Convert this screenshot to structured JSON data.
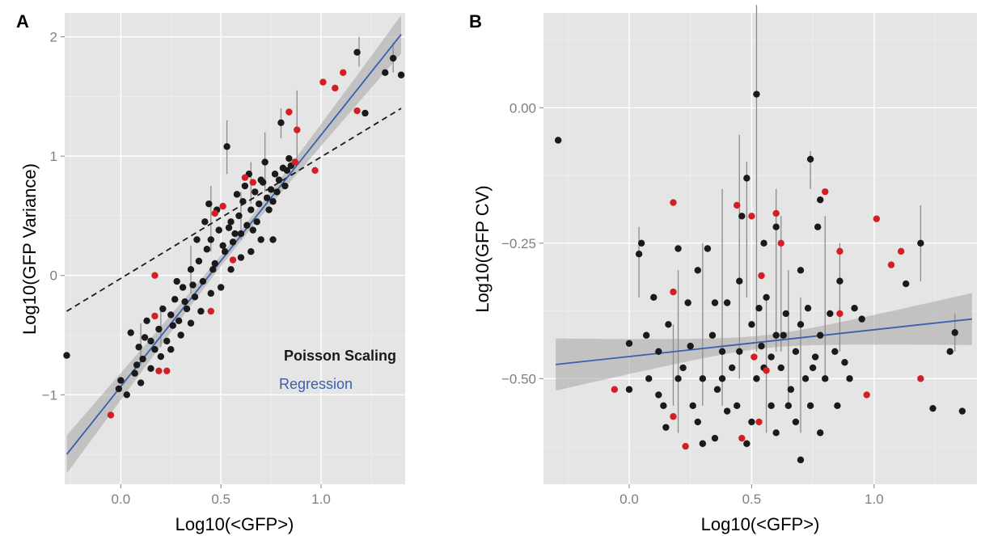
{
  "chart_data": [
    {
      "type": "scatter",
      "panel_letter": "A",
      "xlabel": "Log10(<GFP>)",
      "ylabel": "Log10(GFP Variance)",
      "xlim": [
        -0.28,
        1.42
      ],
      "ylim": [
        -1.75,
        2.2
      ],
      "x_ticks": [
        0.0,
        0.5,
        1.0
      ],
      "x_tick_labels": [
        "0.0",
        "0.5",
        "1.0"
      ],
      "y_ticks": [
        -1,
        0,
        1,
        2
      ],
      "y_tick_labels": [
        "−1",
        "0",
        "1",
        "2"
      ],
      "grid": true,
      "legend_position": "bottom-right",
      "legend": [
        {
          "label": "Poisson Scaling",
          "color": "#1a1a1a",
          "style": "dashed",
          "bold": true
        },
        {
          "label": "Regression",
          "color": "#3a5fb0",
          "style": "solid"
        }
      ],
      "reference_line": {
        "label": "Poisson Scaling",
        "x": [
          -0.27,
          1.4
        ],
        "y": [
          -0.3,
          1.4
        ],
        "color": "#1a1a1a"
      },
      "regression": {
        "label": "Regression",
        "x": [
          -0.27,
          1.4
        ],
        "y": [
          -1.5,
          2.02
        ],
        "band_halfwidth_ends": 0.16,
        "band_halfwidth_center": 0.045,
        "color": "#3a5fb0",
        "band_color": "#a6a6a6"
      },
      "point_colors": {
        "black": "#1a1a1a",
        "red": "#d21f26"
      },
      "points_red": [
        {
          "x": -0.05,
          "y": -1.17
        },
        {
          "x": 0.17,
          "y": 0.0
        },
        {
          "x": 0.17,
          "y": -0.34
        },
        {
          "x": 0.19,
          "y": -0.8
        },
        {
          "x": 0.23,
          "y": -0.8
        },
        {
          "x": 0.45,
          "y": -0.3
        },
        {
          "x": 0.47,
          "y": 0.52
        },
        {
          "x": 0.51,
          "y": 0.58
        },
        {
          "x": 0.56,
          "y": 0.13
        },
        {
          "x": 0.62,
          "y": 0.82
        },
        {
          "x": 0.66,
          "y": 0.78
        },
        {
          "x": 0.84,
          "y": 1.37
        },
        {
          "x": 0.87,
          "y": 0.95
        },
        {
          "x": 0.88,
          "y": 1.22
        },
        {
          "x": 0.97,
          "y": 0.88
        },
        {
          "x": 1.01,
          "y": 1.62
        },
        {
          "x": 1.07,
          "y": 1.57
        },
        {
          "x": 1.11,
          "y": 1.7
        },
        {
          "x": 1.18,
          "y": 1.38
        }
      ],
      "points_black": [
        {
          "x": -0.27,
          "y": -0.67
        },
        {
          "x": -0.01,
          "y": -0.95
        },
        {
          "x": 0.0,
          "y": -0.88
        },
        {
          "x": 0.03,
          "y": -1.0
        },
        {
          "x": 0.05,
          "y": -0.48
        },
        {
          "x": 0.07,
          "y": -0.82
        },
        {
          "x": 0.09,
          "y": -0.6
        },
        {
          "x": 0.11,
          "y": -0.7
        },
        {
          "x": 0.13,
          "y": -0.38
        },
        {
          "x": 0.15,
          "y": -0.55
        },
        {
          "x": 0.17,
          "y": -0.62
        },
        {
          "x": 0.19,
          "y": -0.45
        },
        {
          "x": 0.21,
          "y": -0.28
        },
        {
          "x": 0.23,
          "y": -0.55
        },
        {
          "x": 0.25,
          "y": -0.33
        },
        {
          "x": 0.27,
          "y": -0.2
        },
        {
          "x": 0.29,
          "y": -0.38
        },
        {
          "x": 0.31,
          "y": -0.1
        },
        {
          "x": 0.33,
          "y": -0.28
        },
        {
          "x": 0.35,
          "y": 0.05
        },
        {
          "x": 0.37,
          "y": -0.18
        },
        {
          "x": 0.39,
          "y": 0.12
        },
        {
          "x": 0.41,
          "y": -0.05
        },
        {
          "x": 0.43,
          "y": 0.22
        },
        {
          "x": 0.45,
          "y": 0.3
        },
        {
          "x": 0.47,
          "y": 0.1
        },
        {
          "x": 0.49,
          "y": 0.38
        },
        {
          "x": 0.51,
          "y": 0.25
        },
        {
          "x": 0.53,
          "y": 1.08
        },
        {
          "x": 0.55,
          "y": 0.45
        },
        {
          "x": 0.57,
          "y": 0.35
        },
        {
          "x": 0.59,
          "y": 0.5
        },
        {
          "x": 0.61,
          "y": 0.62
        },
        {
          "x": 0.63,
          "y": 0.42
        },
        {
          "x": 0.65,
          "y": 0.55
        },
        {
          "x": 0.67,
          "y": 0.7
        },
        {
          "x": 0.69,
          "y": 0.6
        },
        {
          "x": 0.71,
          "y": 0.78
        },
        {
          "x": 0.73,
          "y": 0.65
        },
        {
          "x": 0.75,
          "y": 0.72
        },
        {
          "x": 0.77,
          "y": 0.85
        },
        {
          "x": 0.79,
          "y": 0.8
        },
        {
          "x": 0.81,
          "y": 0.9
        },
        {
          "x": 0.83,
          "y": 0.88
        },
        {
          "x": 0.8,
          "y": 1.28
        },
        {
          "x": 0.85,
          "y": 0.92
        },
        {
          "x": 0.6,
          "y": 0.15
        },
        {
          "x": 0.5,
          "y": -0.1
        },
        {
          "x": 0.4,
          "y": -0.3
        },
        {
          "x": 0.3,
          "y": -0.5
        },
        {
          "x": 1.18,
          "y": 1.87
        },
        {
          "x": 1.22,
          "y": 1.36
        },
        {
          "x": 1.32,
          "y": 1.7
        },
        {
          "x": 1.36,
          "y": 1.82
        },
        {
          "x": 1.4,
          "y": 1.68
        },
        {
          "x": 0.7,
          "y": 0.3
        },
        {
          "x": 0.65,
          "y": 0.2
        },
        {
          "x": 0.55,
          "y": 0.05
        },
        {
          "x": 0.45,
          "y": -0.15
        },
        {
          "x": 0.35,
          "y": -0.4
        },
        {
          "x": 0.25,
          "y": -0.62
        },
        {
          "x": 0.15,
          "y": -0.78
        },
        {
          "x": 0.1,
          "y": -0.9
        },
        {
          "x": 0.72,
          "y": 0.95
        },
        {
          "x": 0.78,
          "y": 0.7
        },
        {
          "x": 0.84,
          "y": 0.98
        },
        {
          "x": 0.62,
          "y": 0.75
        },
        {
          "x": 0.58,
          "y": 0.68
        },
        {
          "x": 0.42,
          "y": 0.45
        },
        {
          "x": 0.38,
          "y": 0.3
        },
        {
          "x": 0.48,
          "y": 0.55
        },
        {
          "x": 0.52,
          "y": 0.2
        },
        {
          "x": 0.68,
          "y": 0.45
        },
        {
          "x": 0.74,
          "y": 0.55
        },
        {
          "x": 0.76,
          "y": 0.62
        },
        {
          "x": 0.82,
          "y": 0.75
        },
        {
          "x": 0.66,
          "y": 0.38
        },
        {
          "x": 0.56,
          "y": 0.28
        },
        {
          "x": 0.46,
          "y": 0.05
        },
        {
          "x": 0.36,
          "y": -0.08
        },
        {
          "x": 0.26,
          "y": -0.42
        },
        {
          "x": 0.2,
          "y": -0.68
        },
        {
          "x": 0.12,
          "y": -0.52
        },
        {
          "x": 0.08,
          "y": -0.75
        },
        {
          "x": 0.32,
          "y": -0.22
        },
        {
          "x": 0.28,
          "y": -0.05
        },
        {
          "x": 0.44,
          "y": 0.6
        },
        {
          "x": 0.54,
          "y": 0.4
        },
        {
          "x": 0.64,
          "y": 0.85
        },
        {
          "x": 0.7,
          "y": 0.8
        },
        {
          "x": 0.76,
          "y": 0.3
        },
        {
          "x": 0.6,
          "y": 0.35
        }
      ],
      "error_bars": [
        {
          "x": 0.53,
          "y1": 0.85,
          "y2": 1.3
        },
        {
          "x": 0.88,
          "y1": 0.95,
          "y2": 1.55
        },
        {
          "x": 0.72,
          "y1": 0.7,
          "y2": 1.2
        },
        {
          "x": 0.45,
          "y1": 0.2,
          "y2": 0.75
        },
        {
          "x": 0.35,
          "y1": -0.15,
          "y2": 0.25
        },
        {
          "x": 0.2,
          "y1": -0.6,
          "y2": -0.25
        },
        {
          "x": 1.19,
          "y1": 1.75,
          "y2": 2.0
        },
        {
          "x": 1.36,
          "y1": 1.7,
          "y2": 1.95
        },
        {
          "x": 0.6,
          "y1": 0.3,
          "y2": 0.7
        },
        {
          "x": 0.8,
          "y1": 1.15,
          "y2": 1.4
        },
        {
          "x": 0.1,
          "y1": -0.75,
          "y2": -0.4
        },
        {
          "x": 0.65,
          "y1": 0.6,
          "y2": 0.95
        }
      ]
    },
    {
      "type": "scatter",
      "panel_letter": "B",
      "xlabel": "Log10(<GFP>)",
      "ylabel": "Log10(GFP CV)",
      "xlim": [
        -0.35,
        1.42
      ],
      "ylim": [
        -0.695,
        0.175
      ],
      "x_ticks": [
        0.0,
        0.5,
        1.0
      ],
      "x_tick_labels": [
        "0.0",
        "0.5",
        "1.0"
      ],
      "y_ticks": [
        0.0,
        -0.25,
        -0.5
      ],
      "y_tick_labels": [
        "0.00",
        "−0.25",
        "−0.50"
      ],
      "grid": true,
      "regression": {
        "x": [
          -0.3,
          1.4
        ],
        "y": [
          -0.474,
          -0.39
        ],
        "band_halfwidth_ends": 0.048,
        "band_halfwidth_center": 0.012,
        "color": "#3a5fb0",
        "band_color": "#a6a6a6"
      },
      "point_colors": {
        "black": "#1a1a1a",
        "red": "#d21f26"
      },
      "points_red": [
        {
          "x": -0.06,
          "y": -0.52
        },
        {
          "x": 0.18,
          "y": -0.175
        },
        {
          "x": 0.18,
          "y": -0.34
        },
        {
          "x": 0.18,
          "y": -0.57
        },
        {
          "x": 0.23,
          "y": -0.625
        },
        {
          "x": 0.44,
          "y": -0.18
        },
        {
          "x": 0.46,
          "y": -0.61
        },
        {
          "x": 0.5,
          "y": -0.2
        },
        {
          "x": 0.51,
          "y": -0.46
        },
        {
          "x": 0.53,
          "y": -0.58
        },
        {
          "x": 0.54,
          "y": -0.31
        },
        {
          "x": 0.56,
          "y": -0.485
        },
        {
          "x": 0.6,
          "y": -0.195
        },
        {
          "x": 0.62,
          "y": -0.25
        },
        {
          "x": 0.8,
          "y": -0.155
        },
        {
          "x": 0.86,
          "y": -0.265
        },
        {
          "x": 0.86,
          "y": -0.38
        },
        {
          "x": 0.97,
          "y": -0.53
        },
        {
          "x": 1.01,
          "y": -0.205
        },
        {
          "x": 1.07,
          "y": -0.29
        },
        {
          "x": 1.11,
          "y": -0.265
        },
        {
          "x": 1.19,
          "y": -0.5
        }
      ],
      "points_black": [
        {
          "x": -0.29,
          "y": -0.06
        },
        {
          "x": 0.52,
          "y": 0.025
        },
        {
          "x": 0.74,
          "y": -0.095
        },
        {
          "x": 1.36,
          "y": -0.56
        },
        {
          "x": 1.33,
          "y": -0.415
        },
        {
          "x": 1.31,
          "y": -0.45
        },
        {
          "x": 1.24,
          "y": -0.555
        },
        {
          "x": 1.19,
          "y": -0.25
        },
        {
          "x": 1.13,
          "y": -0.325
        },
        {
          "x": 0.7,
          "y": -0.65
        },
        {
          "x": 0.77,
          "y": -0.22
        },
        {
          "x": 0.78,
          "y": -0.17
        },
        {
          "x": 0.0,
          "y": -0.435
        },
        {
          "x": 0.0,
          "y": -0.52
        },
        {
          "x": 0.04,
          "y": -0.27
        },
        {
          "x": 0.05,
          "y": -0.25
        },
        {
          "x": 0.08,
          "y": -0.5
        },
        {
          "x": 0.1,
          "y": -0.35
        },
        {
          "x": 0.12,
          "y": -0.45
        },
        {
          "x": 0.14,
          "y": -0.55
        },
        {
          "x": 0.16,
          "y": -0.4
        },
        {
          "x": 0.2,
          "y": -0.26
        },
        {
          "x": 0.22,
          "y": -0.48
        },
        {
          "x": 0.24,
          "y": -0.36
        },
        {
          "x": 0.26,
          "y": -0.55
        },
        {
          "x": 0.28,
          "y": -0.3
        },
        {
          "x": 0.3,
          "y": -0.5
        },
        {
          "x": 0.32,
          "y": -0.26
        },
        {
          "x": 0.34,
          "y": -0.42
        },
        {
          "x": 0.36,
          "y": -0.52
        },
        {
          "x": 0.38,
          "y": -0.45
        },
        {
          "x": 0.4,
          "y": -0.36
        },
        {
          "x": 0.42,
          "y": -0.48
        },
        {
          "x": 0.44,
          "y": -0.55
        },
        {
          "x": 0.46,
          "y": -0.2
        },
        {
          "x": 0.48,
          "y": -0.13
        },
        {
          "x": 0.5,
          "y": -0.4
        },
        {
          "x": 0.52,
          "y": -0.5
        },
        {
          "x": 0.54,
          "y": -0.44
        },
        {
          "x": 0.56,
          "y": -0.35
        },
        {
          "x": 0.58,
          "y": -0.55
        },
        {
          "x": 0.6,
          "y": -0.42
        },
        {
          "x": 0.62,
          "y": -0.48
        },
        {
          "x": 0.64,
          "y": -0.38
        },
        {
          "x": 0.66,
          "y": -0.52
        },
        {
          "x": 0.68,
          "y": -0.45
        },
        {
          "x": 0.7,
          "y": -0.4
        },
        {
          "x": 0.72,
          "y": -0.5
        },
        {
          "x": 0.74,
          "y": -0.55
        },
        {
          "x": 0.76,
          "y": -0.46
        },
        {
          "x": 0.78,
          "y": -0.42
        },
        {
          "x": 0.8,
          "y": -0.5
        },
        {
          "x": 0.82,
          "y": -0.38
        },
        {
          "x": 0.84,
          "y": -0.45
        },
        {
          "x": 0.86,
          "y": -0.32
        },
        {
          "x": 0.9,
          "y": -0.5
        },
        {
          "x": 0.95,
          "y": -0.39
        },
        {
          "x": 0.92,
          "y": -0.37
        },
        {
          "x": 0.3,
          "y": -0.62
        },
        {
          "x": 0.35,
          "y": -0.61
        },
        {
          "x": 0.5,
          "y": -0.58
        },
        {
          "x": 0.6,
          "y": -0.6
        },
        {
          "x": 0.4,
          "y": -0.56
        },
        {
          "x": 0.15,
          "y": -0.59
        },
        {
          "x": 0.2,
          "y": -0.5
        },
        {
          "x": 0.45,
          "y": -0.45
        },
        {
          "x": 0.55,
          "y": -0.48
        },
        {
          "x": 0.65,
          "y": -0.55
        },
        {
          "x": 0.75,
          "y": -0.48
        },
        {
          "x": 0.85,
          "y": -0.55
        },
        {
          "x": 0.7,
          "y": -0.3
        },
        {
          "x": 0.6,
          "y": -0.22
        },
        {
          "x": 0.55,
          "y": -0.25
        },
        {
          "x": 0.45,
          "y": -0.32
        },
        {
          "x": 0.35,
          "y": -0.36
        },
        {
          "x": 0.25,
          "y": -0.44
        },
        {
          "x": 0.12,
          "y": -0.53
        },
        {
          "x": 0.07,
          "y": -0.42
        },
        {
          "x": 0.48,
          "y": -0.62
        },
        {
          "x": 0.58,
          "y": -0.46
        },
        {
          "x": 0.68,
          "y": -0.58
        },
        {
          "x": 0.78,
          "y": -0.6
        },
        {
          "x": 0.88,
          "y": -0.47
        },
        {
          "x": 0.38,
          "y": -0.5
        },
        {
          "x": 0.28,
          "y": -0.58
        },
        {
          "x": 0.53,
          "y": -0.37
        },
        {
          "x": 0.63,
          "y": -0.42
        },
        {
          "x": 0.73,
          "y": -0.37
        }
      ],
      "error_bars": [
        {
          "x": 0.52,
          "y1": -0.45,
          "y2": 0.19
        },
        {
          "x": 0.48,
          "y1": -0.35,
          "y2": -0.1
        },
        {
          "x": 0.45,
          "y1": -0.5,
          "y2": -0.05
        },
        {
          "x": 0.6,
          "y1": -0.45,
          "y2": -0.15
        },
        {
          "x": 0.65,
          "y1": -0.55,
          "y2": -0.3
        },
        {
          "x": 0.7,
          "y1": -0.6,
          "y2": -0.35
        },
        {
          "x": 0.8,
          "y1": -0.5,
          "y2": -0.2
        },
        {
          "x": 0.86,
          "y1": -0.45,
          "y2": -0.25
        },
        {
          "x": 0.2,
          "y1": -0.6,
          "y2": -0.3
        },
        {
          "x": 0.3,
          "y1": -0.55,
          "y2": -0.25
        },
        {
          "x": 0.04,
          "y1": -0.35,
          "y2": -0.22
        },
        {
          "x": 1.19,
          "y1": -0.32,
          "y2": -0.18
        },
        {
          "x": 1.33,
          "y1": -0.45,
          "y2": -0.38
        },
        {
          "x": 0.38,
          "y1": -0.55,
          "y2": -0.15
        },
        {
          "x": 0.56,
          "y1": -0.6,
          "y2": -0.35
        },
        {
          "x": 0.74,
          "y1": -0.15,
          "y2": -0.08
        },
        {
          "x": 0.62,
          "y1": -0.45,
          "y2": -0.2
        },
        {
          "x": 0.18,
          "y1": -0.55,
          "y2": -0.4
        }
      ]
    }
  ]
}
